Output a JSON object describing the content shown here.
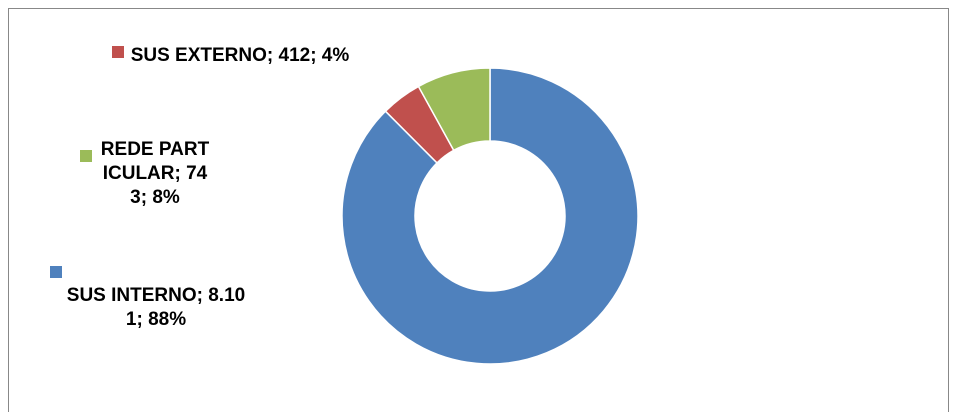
{
  "chart_data": {
    "type": "donut",
    "values": [
      8101,
      412,
      743
    ],
    "value_labels": [
      "SUS INTERNO; 8.101; 88%",
      "SUS EXTERNO; 412; 4%",
      "REDE PARTICULAR; 743; 8%"
    ],
    "colors": [
      "#4f81bd",
      "#c0504d",
      "#9bbb59"
    ]
  }
}
